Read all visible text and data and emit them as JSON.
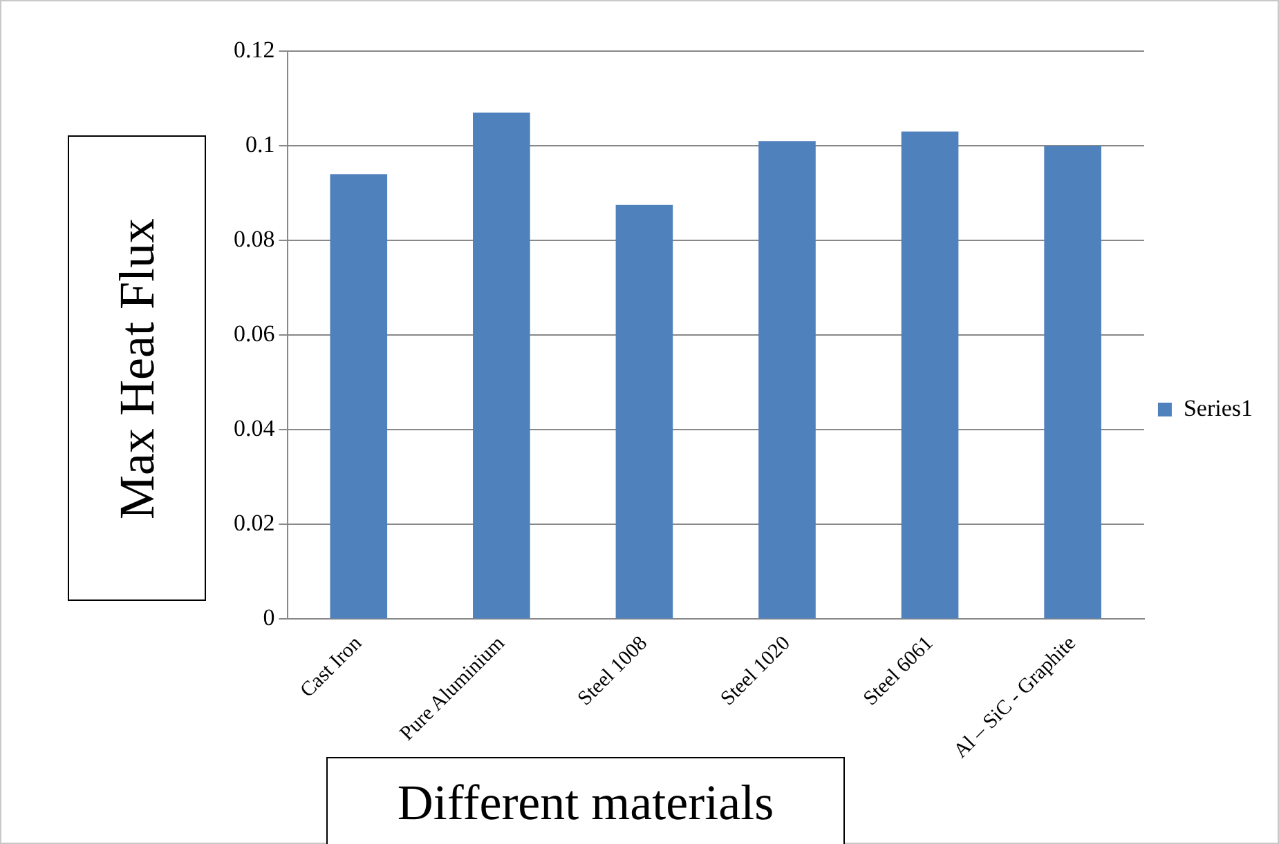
{
  "chart_data": {
    "type": "bar",
    "xlabel": "Different materials",
    "ylabel": "Max Heat Flux",
    "categories": [
      "Cast Iron",
      "Pure Aluminium",
      "Steel 1008",
      "Steel 1020",
      "Steel 6061",
      "Al – SiC - Graphite"
    ],
    "series": [
      {
        "name": "Series1",
        "color": "#4f81bd",
        "values": [
          0.094,
          0.107,
          0.0875,
          0.101,
          0.103,
          0.1
        ]
      }
    ],
    "ylim": [
      0,
      0.12
    ],
    "yticks": [
      0,
      0.02,
      0.04,
      0.06,
      0.08,
      0.1,
      0.12
    ],
    "grid": "y",
    "legend": "right"
  }
}
